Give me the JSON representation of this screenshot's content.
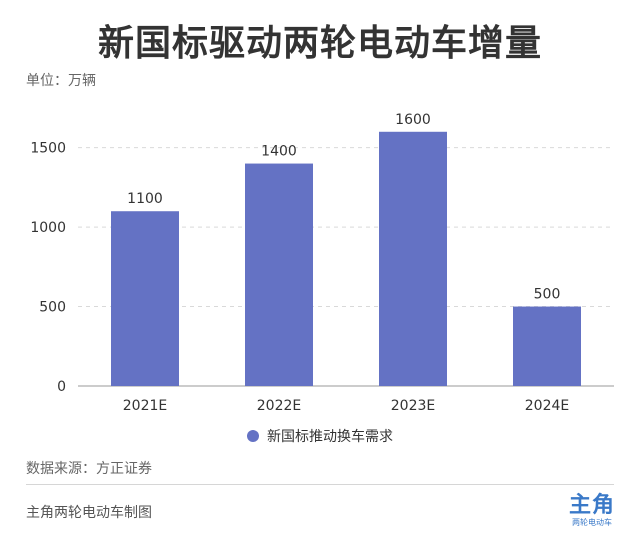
{
  "title": "新国标驱动两轮电动车增量",
  "unit_label": "单位：万辆",
  "source": "数据来源：方正证券",
  "credit": "主角两轮电动车制图",
  "logo": {
    "main": "主角",
    "sub": "两轮电动车"
  },
  "colors": {
    "bar": "#6472c4",
    "grid": "#d9d9d9",
    "axis": "#999999",
    "text": "#333333"
  },
  "chart_data": {
    "type": "bar",
    "categories": [
      "2021E",
      "2022E",
      "2023E",
      "2024E"
    ],
    "series": [
      {
        "name": "新国标推动换车需求",
        "values": [
          1100,
          1400,
          1600,
          500
        ]
      }
    ],
    "data_labels": [
      "1100",
      "1400",
      "1600",
      "500"
    ],
    "yticks": [
      0,
      500,
      1000,
      1500
    ],
    "ylim": [
      0,
      1800
    ],
    "grid": true,
    "legend_position": "bottom"
  }
}
